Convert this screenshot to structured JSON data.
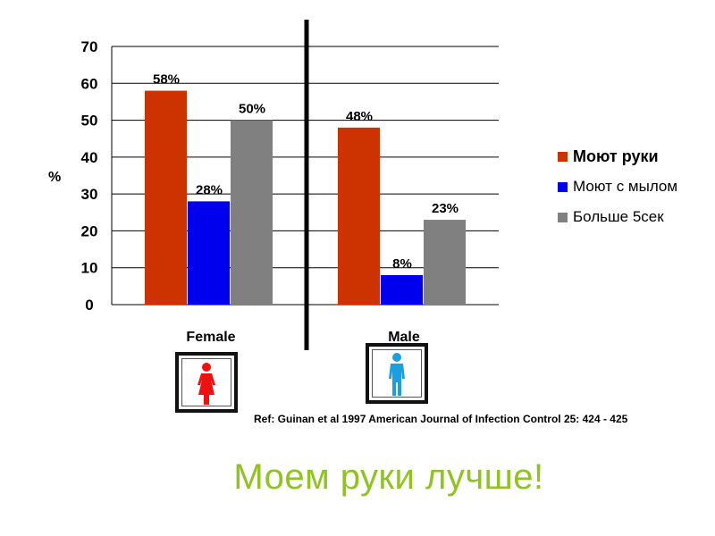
{
  "chart_data": {
    "type": "bar",
    "categories": [
      "Female",
      "Male"
    ],
    "series": [
      {
        "name": "Моют руки",
        "values": [
          58,
          48
        ],
        "labels": [
          "58%",
          "48%"
        ],
        "color": "#cc3300"
      },
      {
        "name": "Моют с мылом",
        "values": [
          28,
          8
        ],
        "labels": [
          "28%",
          "8%"
        ],
        "color": "#0000ee"
      },
      {
        "name": "Больше  5сек",
        "values": [
          50,
          23
        ],
        "labels": [
          "50%",
          "23%"
        ],
        "color": "#808080"
      }
    ],
    "ylabel": "%",
    "ylim": [
      0,
      70
    ],
    "yticks": [
      0,
      10,
      20,
      30,
      40,
      50,
      60,
      70
    ],
    "grid": true,
    "legend_position": "right"
  },
  "icons": {
    "female": {
      "name": "female-figure-icon",
      "color": "#ee1111"
    },
    "male": {
      "name": "male-figure-icon",
      "color": "#1aa0e0"
    }
  },
  "reference": "Ref: Guinan et al 1997 American Journal of Infection Control 25: 424 - 425",
  "slogan": "Моем руки лучше!"
}
